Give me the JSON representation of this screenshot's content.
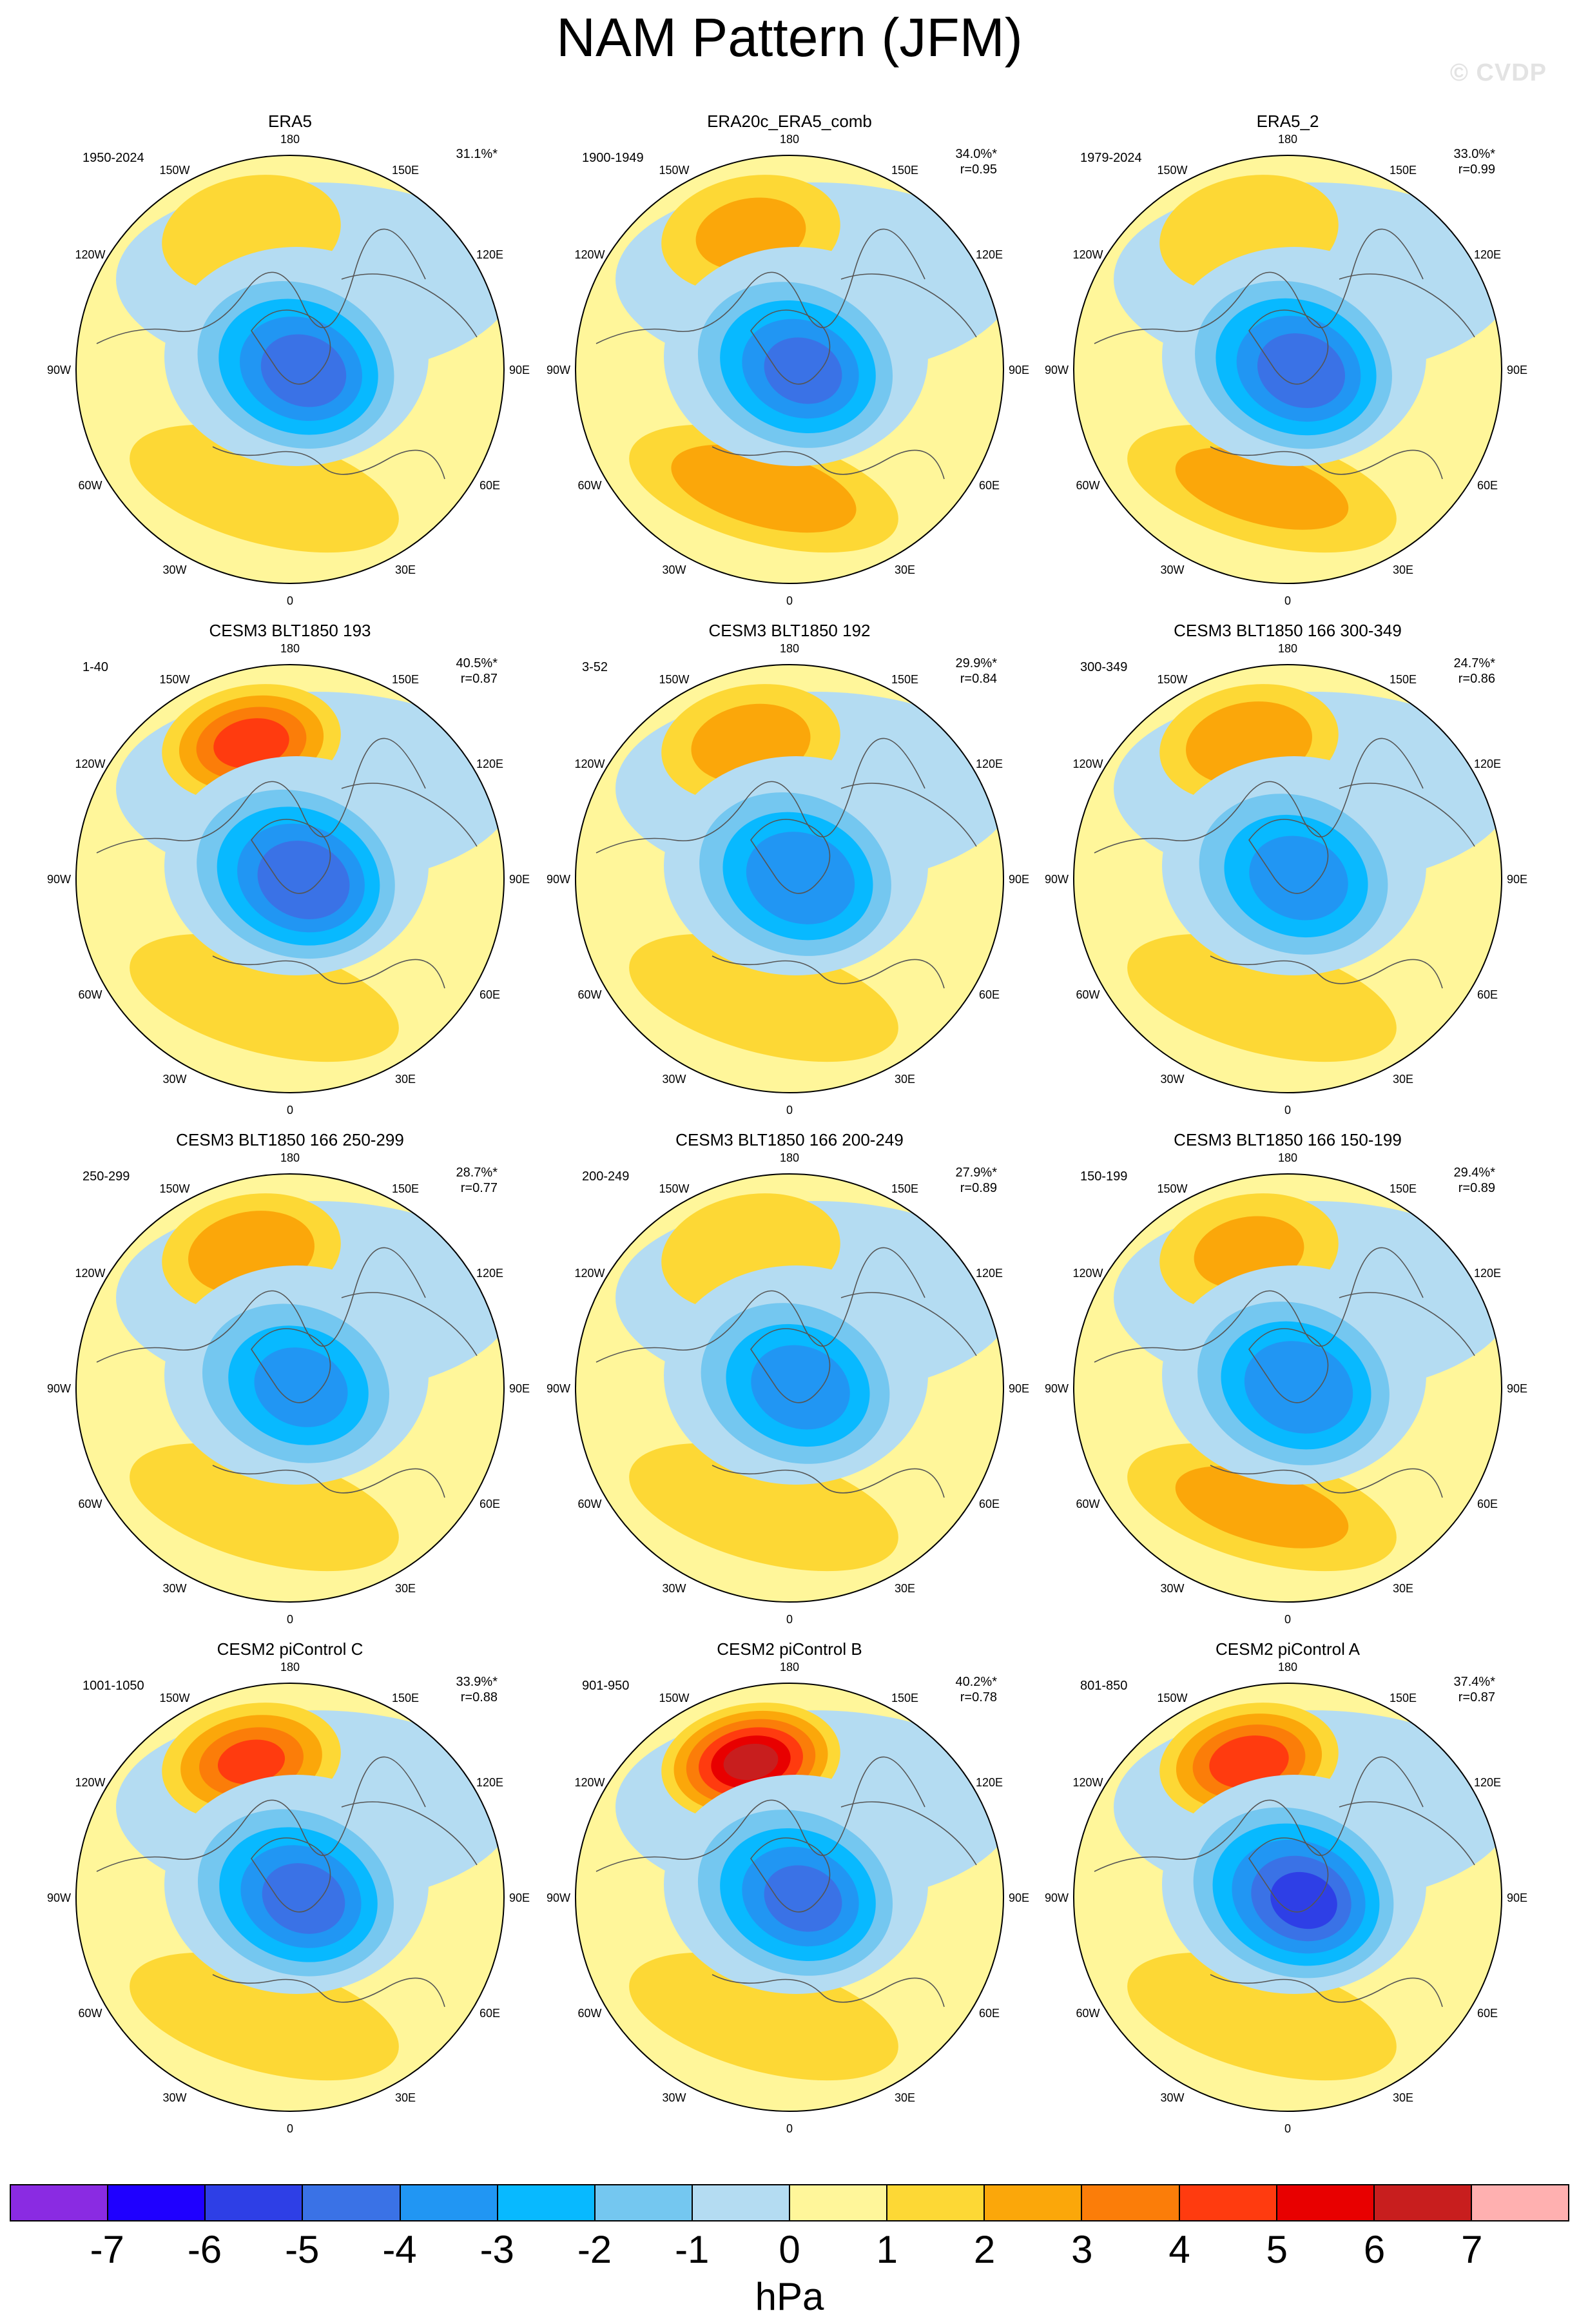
{
  "title": "NAM Pattern (JFM)",
  "watermark": "© CVDP",
  "unit": "hPa",
  "colorbar": {
    "levels": [
      "-7",
      "-6",
      "-5",
      "-4",
      "-3",
      "-2",
      "-1",
      "0",
      "1",
      "2",
      "3",
      "4",
      "5",
      "6",
      "7"
    ],
    "colors": [
      "#8a2be2",
      "#1f00ff",
      "#2e3fe6",
      "#3a72e6",
      "#2196f3",
      "#08b9ff",
      "#74c7f0",
      "#b4dcf2",
      "#fff69a",
      "#fdd835",
      "#fba70a",
      "#fb7d09",
      "#ff3b0f",
      "#e80000",
      "#c81e1e",
      "#ffb0b0"
    ]
  },
  "lon_labels": [
    "180",
    "150E",
    "120E",
    "90E",
    "60E",
    "30E",
    "0",
    "30W",
    "60W",
    "90W",
    "120W",
    "150W"
  ],
  "panels": [
    {
      "title": "ERA5",
      "years": "1950-2024",
      "pct": "31.1%*",
      "r": ""
    },
    {
      "title": "ERA20c_ERA5_comb",
      "years": "1900-1949",
      "pct": "34.0%*",
      "r": "r=0.95"
    },
    {
      "title": "ERA5_2",
      "years": "1979-2024",
      "pct": "33.0%*",
      "r": "r=0.99"
    },
    {
      "title": "CESM3 BLT1850 193",
      "years": "1-40",
      "pct": "40.5%*",
      "r": "r=0.87"
    },
    {
      "title": "CESM3 BLT1850 192",
      "years": "3-52",
      "pct": "29.9%*",
      "r": "r=0.84"
    },
    {
      "title": "CESM3 BLT1850 166 300-349",
      "years": "300-349",
      "pct": "24.7%*",
      "r": "r=0.86"
    },
    {
      "title": "CESM3 BLT1850 166 250-299",
      "years": "250-299",
      "pct": "28.7%*",
      "r": "r=0.77"
    },
    {
      "title": "CESM3 BLT1850 166 200-249",
      "years": "200-249",
      "pct": "27.9%*",
      "r": "r=0.89"
    },
    {
      "title": "CESM3 BLT1850 166 150-199",
      "years": "150-199",
      "pct": "29.4%*",
      "r": "r=0.89"
    },
    {
      "title": "CESM2 piControl C",
      "years": "1001-1050",
      "pct": "33.9%*",
      "r": "r=0.88"
    },
    {
      "title": "CESM2 piControl B",
      "years": "901-950",
      "pct": "40.2%*",
      "r": "r=0.78"
    },
    {
      "title": "CESM2 piControl A",
      "years": "801-850",
      "pct": "37.4%*",
      "r": "r=0.87"
    }
  ],
  "patterns": [
    {
      "pac": 1.2,
      "atl": 1.6,
      "pole": -5.5
    },
    {
      "pac": 2.0,
      "atl": 2.6,
      "pole": -5.2
    },
    {
      "pac": 1.6,
      "atl": 2.2,
      "pole": -5.6
    },
    {
      "pac": 4.6,
      "atl": 1.8,
      "pole": -5.8
    },
    {
      "pac": 2.4,
      "atl": 1.6,
      "pole": -4.8
    },
    {
      "pac": 2.8,
      "atl": 1.8,
      "pole": -4.4
    },
    {
      "pac": 2.8,
      "atl": 1.2,
      "pole": -4.2
    },
    {
      "pac": 1.6,
      "atl": 1.6,
      "pole": -4.4
    },
    {
      "pac": 2.0,
      "atl": 2.2,
      "pole": -4.8
    },
    {
      "pac": 4.2,
      "atl": 1.6,
      "pole": -5.4
    },
    {
      "pac": 6.6,
      "atl": 1.6,
      "pole": -5.2
    },
    {
      "pac": 4.8,
      "atl": 1.6,
      "pole": -6.2
    }
  ]
}
